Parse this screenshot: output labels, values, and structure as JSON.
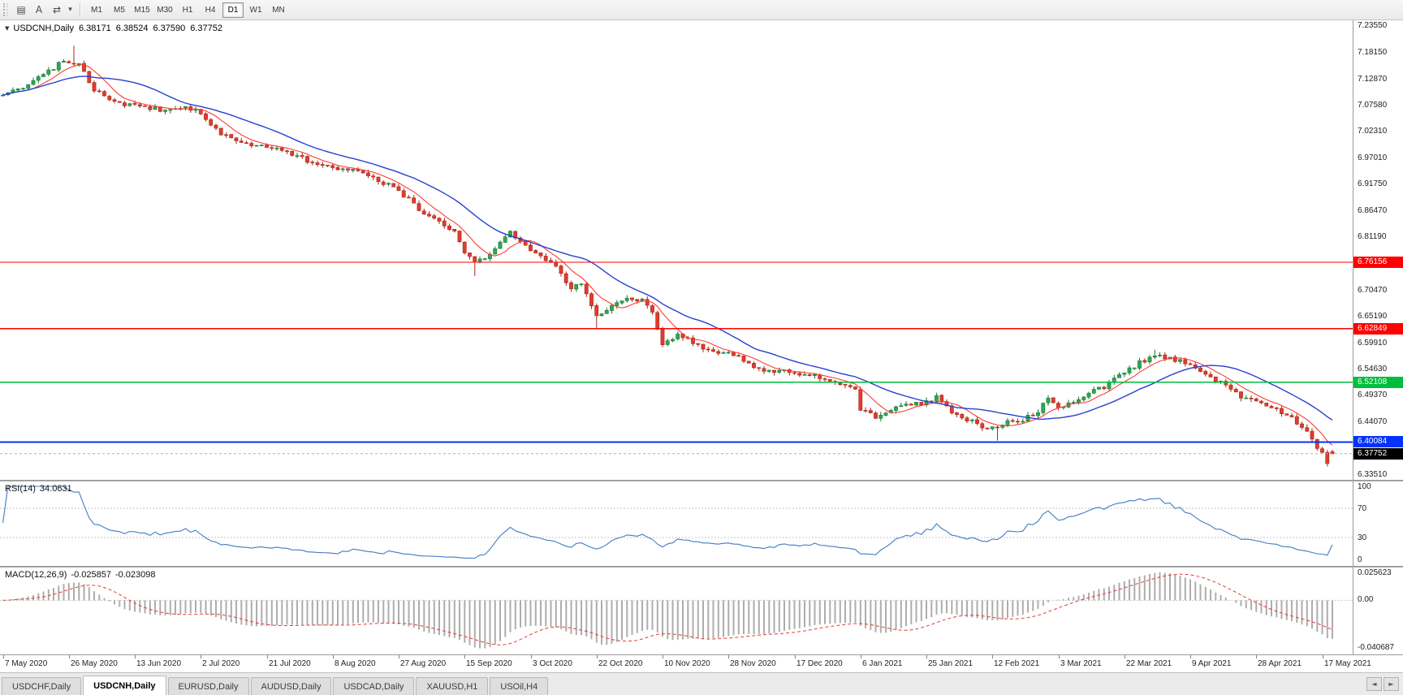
{
  "colors": {
    "up_fill": "#2FA84F",
    "up_stroke": "#17763A",
    "down_fill": "#E23B2B",
    "down_stroke": "#A3291D",
    "ma_fast": "#FF3B30",
    "ma_slow": "#2740CF",
    "rsi_line": "#3F7CC4",
    "macd_hist": "#ADADAD",
    "macd_signal": "#E53935",
    "level_red": "#FF0000",
    "level_green": "#00BE3C",
    "level_blue": "#0432FF",
    "current_badge": "#000000"
  },
  "toolbar": {
    "icons": [
      {
        "name": "chart-grid-icon",
        "glyph": "▤"
      },
      {
        "name": "annotate-a-icon",
        "glyph": "A"
      },
      {
        "name": "scale-toggle-icon",
        "glyph": "⇄"
      },
      {
        "name": "dropdown-caret-icon",
        "glyph": "▾"
      }
    ],
    "timeframes": [
      {
        "label": "M1",
        "active": false
      },
      {
        "label": "M5",
        "active": false
      },
      {
        "label": "M15",
        "active": false
      },
      {
        "label": "M30",
        "active": false
      },
      {
        "label": "H1",
        "active": false
      },
      {
        "label": "H4",
        "active": false
      },
      {
        "label": "D1",
        "active": true
      },
      {
        "label": "W1",
        "active": false
      },
      {
        "label": "MN",
        "active": false
      }
    ]
  },
  "chart": {
    "collapse_icon": "▼",
    "symbol": "USDCNH,Daily",
    "ohlc": {
      "open": "6.38171",
      "high": "6.38524",
      "low": "6.37590",
      "close": "6.37752"
    },
    "price_axis": {
      "top": 7.247,
      "bottom": 6.325,
      "ticks": [
        {
          "v": 7.2355,
          "label": "7.23550"
        },
        {
          "v": 7.1815,
          "label": "7.18150"
        },
        {
          "v": 7.1287,
          "label": "7.12870"
        },
        {
          "v": 7.0758,
          "label": "7.07580"
        },
        {
          "v": 7.0231,
          "label": "7.02310"
        },
        {
          "v": 6.9701,
          "label": "6.97010"
        },
        {
          "v": 6.9175,
          "label": "6.91750"
        },
        {
          "v": 6.8647,
          "label": "6.86470"
        },
        {
          "v": 6.8119,
          "label": "6.81190"
        },
        {
          "v": 6.7047,
          "label": "6.70470"
        },
        {
          "v": 6.6519,
          "label": "6.65190"
        },
        {
          "v": 6.5991,
          "label": "6.59910"
        },
        {
          "v": 6.5463,
          "label": "6.54630"
        },
        {
          "v": 6.4937,
          "label": "6.49370"
        },
        {
          "v": 6.4407,
          "label": "6.44070"
        },
        {
          "v": 6.3351,
          "label": "6.33510"
        }
      ]
    },
    "levels": [
      {
        "v": 6.76156,
        "label": "6.76156",
        "color_key": "level_red",
        "width": 1.4
      },
      {
        "v": 6.62849,
        "label": "6.62849",
        "color_key": "level_red",
        "width": 1.4
      },
      {
        "v": 6.52108,
        "label": "6.52108",
        "color_key": "level_green",
        "width": 1.6
      },
      {
        "v": 6.40084,
        "label": "6.40084",
        "color_key": "level_blue",
        "width": 2
      },
      {
        "v": 6.37752,
        "label": "6.37752",
        "color_key": "current_badge",
        "width": 1,
        "style": "current"
      }
    ]
  },
  "rsi": {
    "name": "RSI(14)",
    "value": "34.0631",
    "axis": [
      {
        "v": 100,
        "label": "100"
      },
      {
        "v": 70,
        "label": "70"
      },
      {
        "v": 30,
        "label": "30"
      },
      {
        "v": 0,
        "label": "0"
      }
    ],
    "guides": [
      70,
      30
    ]
  },
  "macd": {
    "name": "MACD(12,26,9)",
    "main_value": "-0.025857",
    "signal_value": "-0.023098",
    "axis_max_label": "0.025623",
    "axis_zero_label": "0.00",
    "axis_min_label": "-0.040687"
  },
  "x_axis": {
    "step": 13,
    "labels": [
      "7 May 2020",
      "26 May 2020",
      "13 Jun 2020",
      "2 Jul 2020",
      "21 Jul 2020",
      "8 Aug 2020",
      "27 Aug 2020",
      "15 Sep 2020",
      "3 Oct 2020",
      "22 Oct 2020",
      "10 Nov 2020",
      "28 Nov 2020",
      "17 Dec 2020",
      "6 Jan 2021",
      "25 Jan 2021",
      "12 Feb 2021",
      "3 Mar 2021",
      "22 Mar 2021",
      "9 Apr 2021",
      "28 Apr 2021",
      "17 May 2021"
    ]
  },
  "tabs": {
    "items": [
      {
        "label": "USDCHF,Daily",
        "active": false
      },
      {
        "label": "USDCNH,Daily",
        "active": true
      },
      {
        "label": "EURUSD,Daily",
        "active": false
      },
      {
        "label": "AUDUSD,Daily",
        "active": false
      },
      {
        "label": "USDCAD,Daily",
        "active": false
      },
      {
        "label": "XAUUSD,H1",
        "active": false
      },
      {
        "label": "USOil,H4",
        "active": false
      }
    ],
    "scroll_left": "◄",
    "scroll_right": "►"
  },
  "chart_data": {
    "type": "candlestick",
    "symbol": "USDCNH",
    "timeframe": "D1",
    "count": 263,
    "seed": 20210526,
    "ma_fast_period": 7,
    "ma_slow_period": 20,
    "rsi_period": 14,
    "macd_params": [
      12,
      26,
      9
    ],
    "last_candle": [
      6.38171,
      6.38524,
      6.3759,
      6.37752
    ],
    "anchors": [
      [
        0,
        7.095
      ],
      [
        4,
        7.115
      ],
      [
        8,
        7.135
      ],
      [
        12,
        7.168
      ],
      [
        15,
        7.16
      ],
      [
        18,
        7.105
      ],
      [
        22,
        7.082
      ],
      [
        26,
        7.075
      ],
      [
        31,
        7.068
      ],
      [
        35,
        7.072
      ],
      [
        39,
        7.062
      ],
      [
        43,
        7.02
      ],
      [
        47,
        7.0
      ],
      [
        52,
        6.995
      ],
      [
        56,
        6.982
      ],
      [
        60,
        6.965
      ],
      [
        65,
        6.952
      ],
      [
        69,
        6.945
      ],
      [
        73,
        6.932
      ],
      [
        78,
        6.905
      ],
      [
        82,
        6.868
      ],
      [
        86,
        6.845
      ],
      [
        89,
        6.822
      ],
      [
        91,
        6.782
      ],
      [
        93,
        6.76
      ],
      [
        96,
        6.778
      ],
      [
        100,
        6.82
      ],
      [
        103,
        6.8
      ],
      [
        104,
        6.788
      ],
      [
        107,
        6.768
      ],
      [
        110,
        6.74
      ],
      [
        112,
        6.705
      ],
      [
        114,
        6.72
      ],
      [
        117,
        6.652
      ],
      [
        120,
        6.672
      ],
      [
        123,
        6.692
      ],
      [
        126,
        6.686
      ],
      [
        128,
        6.66
      ],
      [
        130,
        6.598
      ],
      [
        133,
        6.618
      ],
      [
        136,
        6.602
      ],
      [
        139,
        6.585
      ],
      [
        143,
        6.578
      ],
      [
        146,
        6.565
      ],
      [
        149,
        6.548
      ],
      [
        153,
        6.542
      ],
      [
        156,
        6.54
      ],
      [
        160,
        6.532
      ],
      [
        164,
        6.522
      ],
      [
        168,
        6.505
      ],
      [
        169,
        6.468
      ],
      [
        172,
        6.452
      ],
      [
        175,
        6.466
      ],
      [
        178,
        6.476
      ],
      [
        182,
        6.48
      ],
      [
        184,
        6.49
      ],
      [
        187,
        6.463
      ],
      [
        190,
        6.446
      ],
      [
        193,
        6.433
      ],
      [
        195,
        6.428
      ],
      [
        198,
        6.44
      ],
      [
        201,
        6.446
      ],
      [
        204,
        6.462
      ],
      [
        206,
        6.488
      ],
      [
        208,
        6.47
      ],
      [
        211,
        6.478
      ],
      [
        214,
        6.5
      ],
      [
        217,
        6.512
      ],
      [
        221,
        6.542
      ],
      [
        224,
        6.56
      ],
      [
        227,
        6.574
      ],
      [
        230,
        6.568
      ],
      [
        234,
        6.556
      ],
      [
        237,
        6.54
      ],
      [
        240,
        6.52
      ],
      [
        243,
        6.497
      ],
      [
        247,
        6.48
      ],
      [
        250,
        6.47
      ],
      [
        253,
        6.456
      ],
      [
        255,
        6.438
      ],
      [
        256,
        6.43
      ],
      [
        257,
        6.42
      ],
      [
        258,
        6.405
      ],
      [
        259,
        6.39
      ],
      [
        260,
        6.378
      ],
      [
        261,
        6.362
      ],
      [
        262,
        6.3775
      ]
    ],
    "wick_events": {
      "14": {
        "h": 7.196
      },
      "93": {
        "l": 6.734
      },
      "117": {
        "l": 6.63
      },
      "196": {
        "l": 6.404
      },
      "227": {
        "h": 6.586
      },
      "261": {
        "l": 6.3525
      }
    }
  }
}
